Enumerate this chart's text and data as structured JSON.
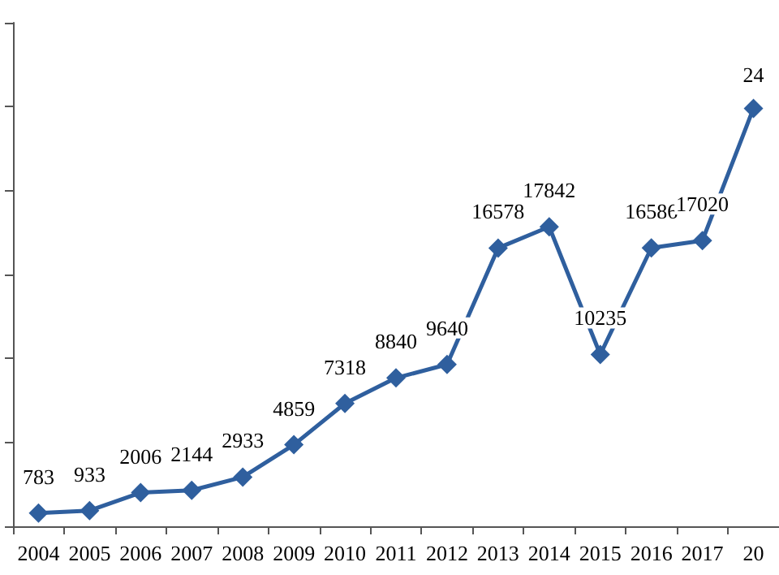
{
  "chart_data": {
    "type": "line",
    "categories": [
      "2004",
      "2005",
      "2006",
      "2007",
      "2008",
      "2009",
      "2010",
      "2011",
      "2012",
      "2013",
      "2014",
      "2015",
      "2016",
      "2017",
      "20"
    ],
    "series": [
      {
        "color": "#2f5f9e",
        "values": [
          783,
          933,
          2006,
          2144,
          2933,
          4859,
          7318,
          8840,
          9640,
          16578,
          17842,
          10235,
          16586,
          17020,
          24900
        ],
        "value_labels": [
          "783",
          "933",
          "2006",
          "2144",
          "2933",
          "4859",
          "7318",
          "8840",
          "9640",
          "16578",
          "17842",
          "10235",
          "16586",
          "17020",
          null
        ]
      }
    ],
    "annotations": [
      {
        "text": "24",
        "x": "20",
        "y": 24900
      }
    ],
    "ylim": [
      0,
      30000
    ],
    "yticks": [
      {
        "value": 0,
        "label": null
      },
      {
        "value": 5000,
        "label": null
      },
      {
        "value": 10000,
        "label": null
      },
      {
        "value": 15000,
        "label": null
      },
      {
        "value": 20000,
        "label": null
      },
      {
        "value": 25000,
        "label": null
      },
      {
        "value": 30000,
        "label": null
      }
    ],
    "tick_labels": "x",
    "grid": false,
    "marker": "diamond",
    "line_style": "solid"
  }
}
